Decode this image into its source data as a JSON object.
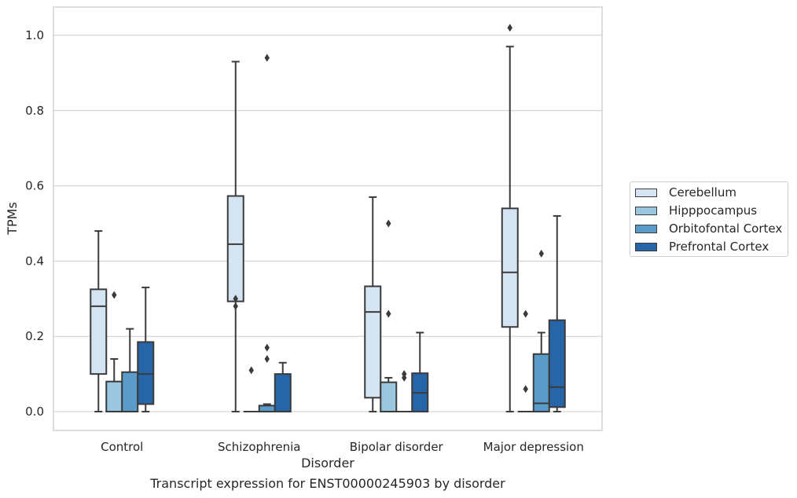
{
  "chart_data": {
    "type": "box",
    "title": "",
    "caption": "Transcript expression for ENST00000245903 by disorder",
    "xlabel": "Disorder",
    "ylabel": "TPMs",
    "ylim": [
      -0.05,
      1.075
    ],
    "yticks": [
      0.0,
      0.2,
      0.4,
      0.6,
      0.8,
      1.0
    ],
    "ytick_labels": [
      "0.0",
      "0.2",
      "0.4",
      "0.6",
      "0.8",
      "1.0"
    ],
    "grid": "horizontal",
    "legend_position": "right-center",
    "categories": [
      "Control",
      "Schizophrenia",
      "Bipolar disorder",
      "Major depression"
    ],
    "series": [
      {
        "name": "Cerebellum",
        "color": "#d4e4f3",
        "boxes": [
          {
            "whislo": 0.0,
            "q1": 0.1,
            "med": 0.28,
            "q3": 0.325,
            "whishi": 0.48,
            "fliers": []
          },
          {
            "whislo": 0.0,
            "q1": 0.293,
            "med": 0.445,
            "q3": 0.573,
            "whishi": 0.93,
            "fliers": [
              0.3,
              0.28
            ]
          },
          {
            "whislo": 0.0,
            "q1": 0.037,
            "med": 0.265,
            "q3": 0.333,
            "whishi": 0.57,
            "fliers": []
          },
          {
            "whislo": 0.0,
            "q1": 0.225,
            "med": 0.37,
            "q3": 0.54,
            "whishi": 0.97,
            "fliers": [
              1.02
            ]
          }
        ]
      },
      {
        "name": "Hipppocampus",
        "color": "#9bc6df",
        "boxes": [
          {
            "whislo": 0.0,
            "q1": 0.0,
            "med": 0.0,
            "q3": 0.08,
            "whishi": 0.14,
            "fliers": [
              0.31
            ]
          },
          {
            "whislo": 0.0,
            "q1": 0.0,
            "med": 0.0,
            "q3": 0.0,
            "whishi": 0.0,
            "fliers": [
              0.11
            ]
          },
          {
            "whislo": 0.0,
            "q1": 0.0,
            "med": 0.0,
            "q3": 0.078,
            "whishi": 0.09,
            "fliers": [
              0.5,
              0.26
            ]
          },
          {
            "whislo": 0.0,
            "q1": 0.0,
            "med": 0.0,
            "q3": 0.0,
            "whishi": 0.0,
            "fliers": [
              0.26,
              0.06
            ]
          }
        ]
      },
      {
        "name": "Orbitofontal Cortex",
        "color": "#5a9bc9",
        "boxes": [
          {
            "whislo": 0.0,
            "q1": 0.0,
            "med": 0.0,
            "q3": 0.105,
            "whishi": 0.22,
            "fliers": []
          },
          {
            "whislo": 0.0,
            "q1": 0.0,
            "med": 0.0,
            "q3": 0.016,
            "whishi": 0.02,
            "fliers": [
              0.94,
              0.17,
              0.14
            ]
          },
          {
            "whislo": 0.0,
            "q1": 0.0,
            "med": 0.0,
            "q3": 0.0,
            "whishi": 0.0,
            "fliers": [
              0.1,
              0.09
            ]
          },
          {
            "whislo": 0.0,
            "q1": 0.0,
            "med": 0.022,
            "q3": 0.153,
            "whishi": 0.21,
            "fliers": [
              0.42
            ]
          }
        ]
      },
      {
        "name": "Prefrontal Cortex",
        "color": "#2565a8",
        "boxes": [
          {
            "whislo": 0.0,
            "q1": 0.02,
            "med": 0.1,
            "q3": 0.185,
            "whishi": 0.33,
            "fliers": []
          },
          {
            "whislo": 0.0,
            "q1": 0.0,
            "med": 0.0,
            "q3": 0.1,
            "whishi": 0.13,
            "fliers": []
          },
          {
            "whislo": 0.0,
            "q1": 0.0,
            "med": 0.05,
            "q3": 0.102,
            "whishi": 0.21,
            "fliers": []
          },
          {
            "whislo": 0.0,
            "q1": 0.012,
            "med": 0.065,
            "q3": 0.243,
            "whishi": 0.52,
            "fliers": []
          }
        ]
      }
    ]
  }
}
